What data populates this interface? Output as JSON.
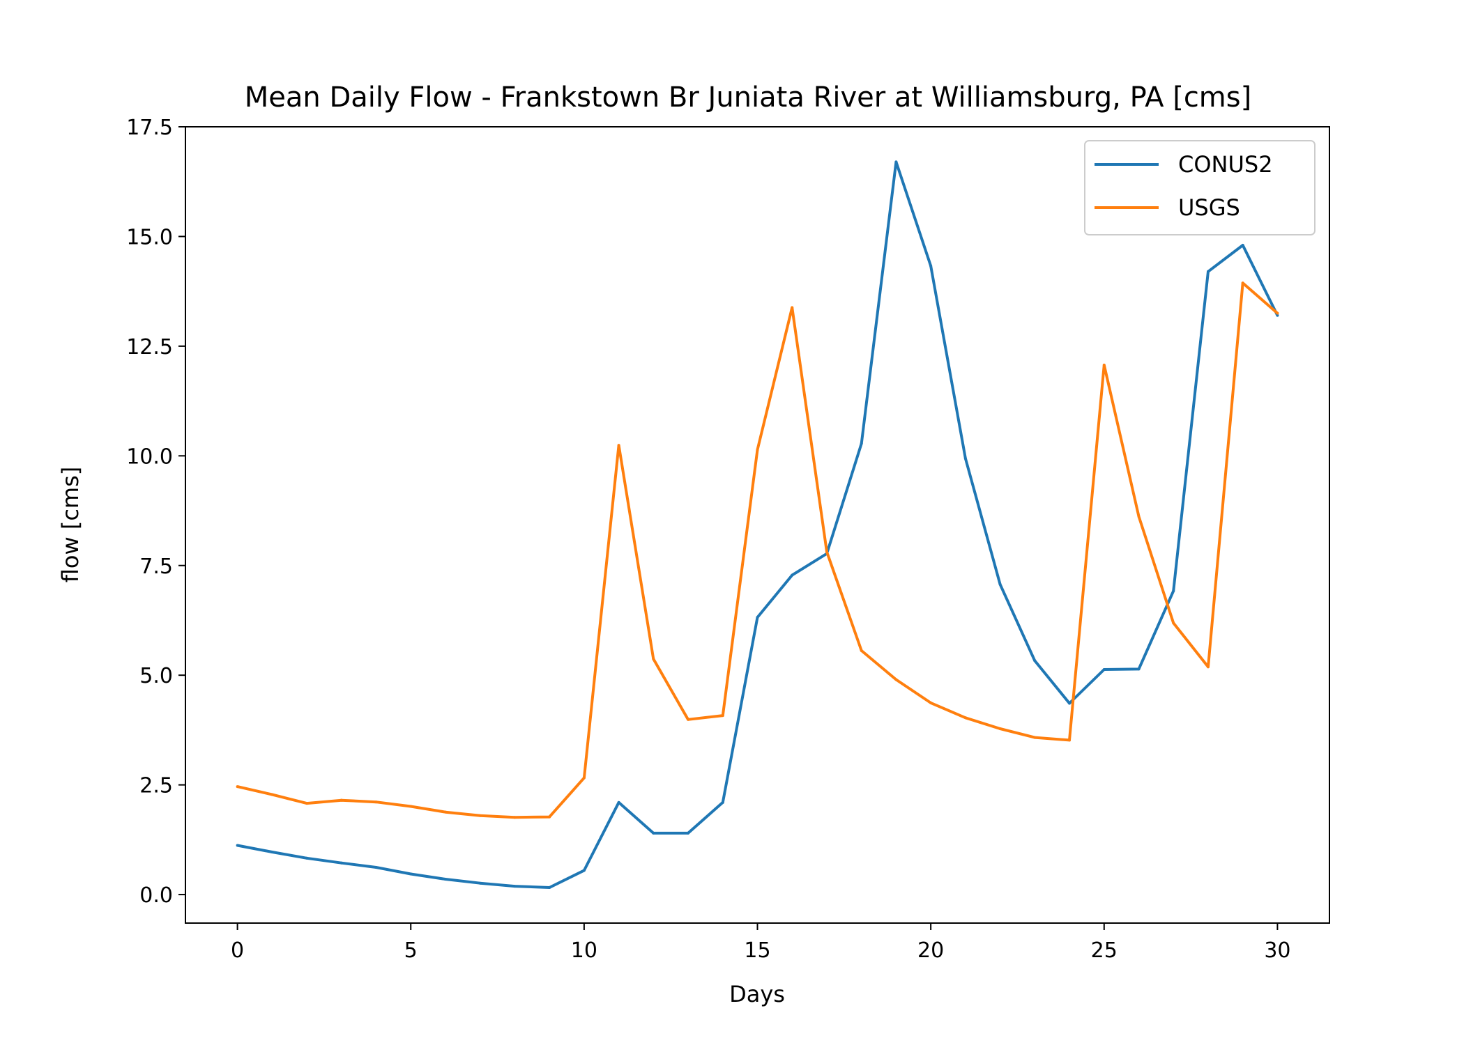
{
  "chart_data": {
    "type": "line",
    "title": "Mean Daily Flow - Frankstown Br Juniata River at Williamsburg, PA [cms]",
    "xlabel": "Days",
    "ylabel": "flow [cms]",
    "xlim": [
      -1.5,
      31.5
    ],
    "ylim": [
      -0.65,
      17.5
    ],
    "xticks": [
      0,
      5,
      10,
      15,
      20,
      25,
      30
    ],
    "yticks": [
      0.0,
      2.5,
      5.0,
      7.5,
      10.0,
      12.5,
      15.0,
      17.5
    ],
    "xtick_labels": [
      "0",
      "5",
      "10",
      "15",
      "20",
      "25",
      "30"
    ],
    "ytick_labels": [
      "0.0",
      "2.5",
      "5.0",
      "7.5",
      "10.0",
      "12.5",
      "15.0",
      "17.5"
    ],
    "grid": false,
    "legend_position": "top-right",
    "x": [
      0,
      1,
      2,
      3,
      4,
      5,
      6,
      7,
      8,
      9,
      10,
      11,
      12,
      13,
      14,
      15,
      16,
      17,
      18,
      19,
      20,
      21,
      22,
      23,
      24,
      25,
      26,
      27,
      28,
      29,
      30
    ],
    "series": [
      {
        "name": "CONUS2",
        "color": "#1f77b4",
        "values": [
          1.12,
          0.97,
          0.83,
          0.72,
          0.62,
          0.47,
          0.35,
          0.26,
          0.19,
          0.16,
          0.55,
          2.1,
          1.4,
          1.4,
          2.1,
          6.32,
          7.28,
          7.77,
          10.28,
          16.7,
          14.33,
          9.94,
          7.07,
          5.33,
          4.36,
          5.13,
          5.14,
          6.92,
          14.2,
          14.8,
          13.2
        ]
      },
      {
        "name": "USGS",
        "color": "#ff7f0e",
        "values": [
          2.46,
          2.28,
          2.08,
          2.15,
          2.11,
          2.01,
          1.88,
          1.8,
          1.76,
          1.77,
          2.66,
          10.24,
          5.37,
          3.99,
          4.08,
          10.14,
          13.38,
          7.81,
          5.56,
          4.9,
          4.37,
          4.03,
          3.78,
          3.58,
          3.52,
          12.07,
          8.62,
          6.19,
          5.19,
          13.94,
          13.25
        ]
      }
    ]
  }
}
